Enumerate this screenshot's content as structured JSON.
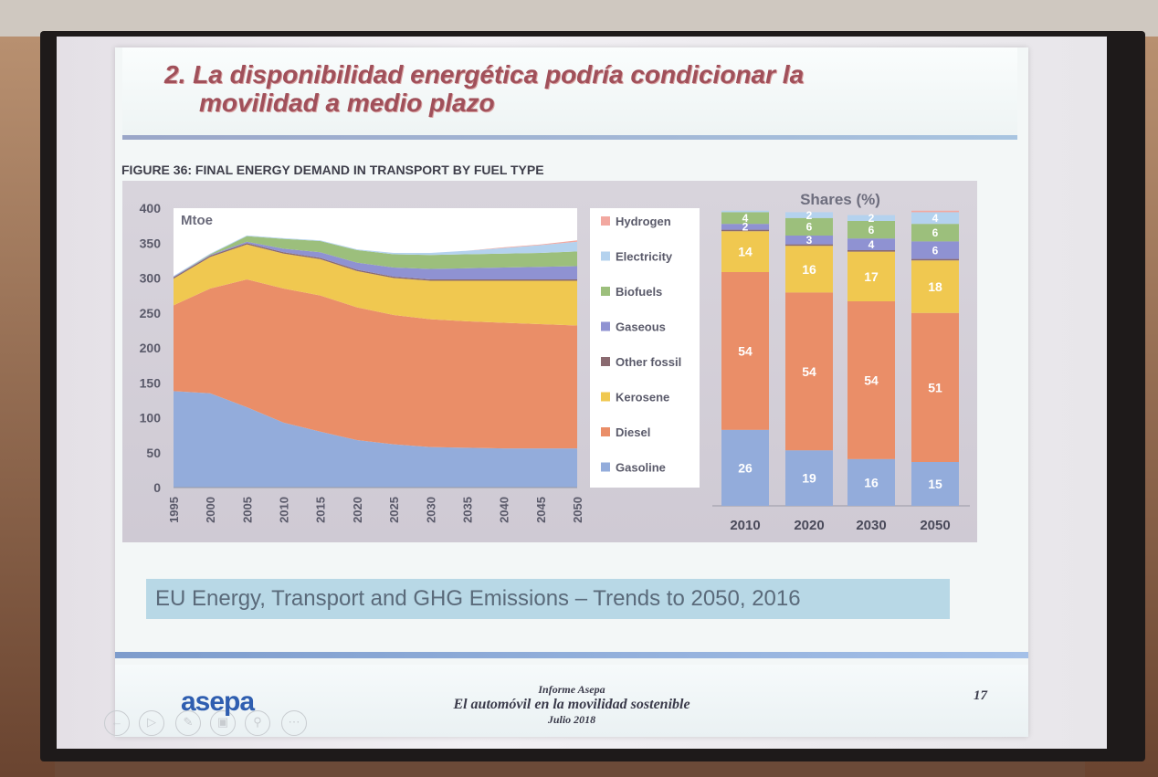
{
  "slide": {
    "title_line1": "2. La disponibilidad energética podría condicionar la",
    "title_line2": "movilidad a medio plazo",
    "figure_caption": "FIGURE 36: FINAL ENERGY DEMAND IN TRANSPORT BY FUEL TYPE",
    "source": "EU Energy, Transport and GHG Emissions – Trends to 2050, 2016",
    "footer": {
      "line1": "Informe Asepa",
      "line2": "El automóvil en la movilidad sostenible",
      "line3": "Julio 2018"
    },
    "page_number": "17",
    "logo": "asepa"
  },
  "colors": {
    "Gasoline": "#93acdb",
    "Diesel": "#ea8e68",
    "Kerosene": "#f0c850",
    "Other fossil": "#8a6a70",
    "Gaseous": "#8f92d2",
    "Biofuels": "#9cbf7c",
    "Electricity": "#b4d2ee",
    "Hydrogen": "#f2a8a0"
  },
  "chart_data": [
    {
      "type": "area",
      "stacked": true,
      "unit_label": "Mtoe",
      "x": [
        1995,
        2000,
        2005,
        2010,
        2015,
        2020,
        2025,
        2030,
        2035,
        2040,
        2045,
        2050
      ],
      "ylim": [
        0,
        400
      ],
      "yticks": [
        0,
        50,
        100,
        150,
        200,
        250,
        300,
        350,
        400
      ],
      "series": [
        {
          "name": "Gasoline",
          "values": [
            138,
            135,
            115,
            93,
            80,
            68,
            62,
            58,
            57,
            56,
            56,
            56
          ]
        },
        {
          "name": "Diesel",
          "values": [
            123,
            150,
            183,
            192,
            195,
            190,
            185,
            183,
            181,
            180,
            178,
            176
          ]
        },
        {
          "name": "Kerosene",
          "values": [
            38,
            45,
            50,
            50,
            52,
            52,
            53,
            55,
            58,
            60,
            62,
            64
          ]
        },
        {
          "name": "Other fossil",
          "values": [
            2,
            2,
            2,
            2,
            2,
            2,
            2,
            2,
            2,
            2,
            2,
            2
          ]
        },
        {
          "name": "Gaseous",
          "values": [
            1,
            1,
            2,
            5,
            8,
            10,
            13,
            15,
            16,
            17,
            18,
            19
          ]
        },
        {
          "name": "Biofuels",
          "values": [
            0,
            1,
            8,
            14,
            16,
            18,
            19,
            20,
            20,
            20,
            20,
            21
          ]
        },
        {
          "name": "Electricity",
          "values": [
            1,
            1,
            1,
            1,
            1,
            1,
            2,
            3,
            5,
            8,
            11,
            14
          ]
        },
        {
          "name": "Hydrogen",
          "values": [
            0,
            0,
            0,
            0,
            0,
            0,
            0,
            0,
            0,
            1,
            1,
            2
          ]
        }
      ]
    },
    {
      "type": "bar",
      "stacked": true,
      "title": "Shares (%)",
      "categories": [
        "2010",
        "2020",
        "2030",
        "2050"
      ],
      "ylim": [
        0,
        100
      ],
      "series": [
        {
          "name": "Gasoline",
          "values": [
            26,
            19,
            16,
            15
          ]
        },
        {
          "name": "Diesel",
          "values": [
            54,
            54,
            54,
            51
          ]
        },
        {
          "name": "Kerosene",
          "values": [
            14,
            16,
            17,
            18
          ]
        },
        {
          "name": "Other fossil",
          "values": [
            0.5,
            0.5,
            0.5,
            0.5
          ]
        },
        {
          "name": "Gaseous",
          "values": [
            2,
            3,
            4,
            6
          ]
        },
        {
          "name": "Biofuels",
          "values": [
            4,
            6,
            6,
            6
          ]
        },
        {
          "name": "Electricity",
          "values": [
            0.5,
            2,
            2,
            4
          ]
        },
        {
          "name": "Hydrogen",
          "values": [
            0,
            0,
            0,
            0.5
          ]
        }
      ],
      "labels": [
        {
          "category": "2010",
          "series": "Gasoline",
          "text": "26"
        },
        {
          "category": "2010",
          "series": "Diesel",
          "text": "54"
        },
        {
          "category": "2010",
          "series": "Kerosene",
          "text": "14"
        },
        {
          "category": "2010",
          "series": "Gaseous",
          "text": "2"
        },
        {
          "category": "2010",
          "series": "Biofuels",
          "text": "4"
        },
        {
          "category": "2020",
          "series": "Gasoline",
          "text": "19"
        },
        {
          "category": "2020",
          "series": "Diesel",
          "text": "54"
        },
        {
          "category": "2020",
          "series": "Kerosene",
          "text": "16"
        },
        {
          "category": "2020",
          "series": "Gaseous",
          "text": "3"
        },
        {
          "category": "2020",
          "series": "Biofuels",
          "text": "6"
        },
        {
          "category": "2020",
          "series": "Electricity",
          "text": "2"
        },
        {
          "category": "2030",
          "series": "Gasoline",
          "text": "16"
        },
        {
          "category": "2030",
          "series": "Diesel",
          "text": "54"
        },
        {
          "category": "2030",
          "series": "Kerosene",
          "text": "17"
        },
        {
          "category": "2030",
          "series": "Gaseous",
          "text": "4"
        },
        {
          "category": "2030",
          "series": "Biofuels",
          "text": "6"
        },
        {
          "category": "2030",
          "series": "Electricity",
          "text": "2"
        },
        {
          "category": "2050",
          "series": "Gasoline",
          "text": "15"
        },
        {
          "category": "2050",
          "series": "Diesel",
          "text": "51"
        },
        {
          "category": "2050",
          "series": "Kerosene",
          "text": "18"
        },
        {
          "category": "2050",
          "series": "Gaseous",
          "text": "6"
        },
        {
          "category": "2050",
          "series": "Biofuels",
          "text": "6"
        },
        {
          "category": "2050",
          "series": "Electricity",
          "text": "4"
        }
      ]
    }
  ],
  "legend": [
    "Hydrogen",
    "Electricity",
    "Biofuels",
    "Gaseous",
    "Other fossil",
    "Kerosene",
    "Diesel",
    "Gasoline"
  ]
}
